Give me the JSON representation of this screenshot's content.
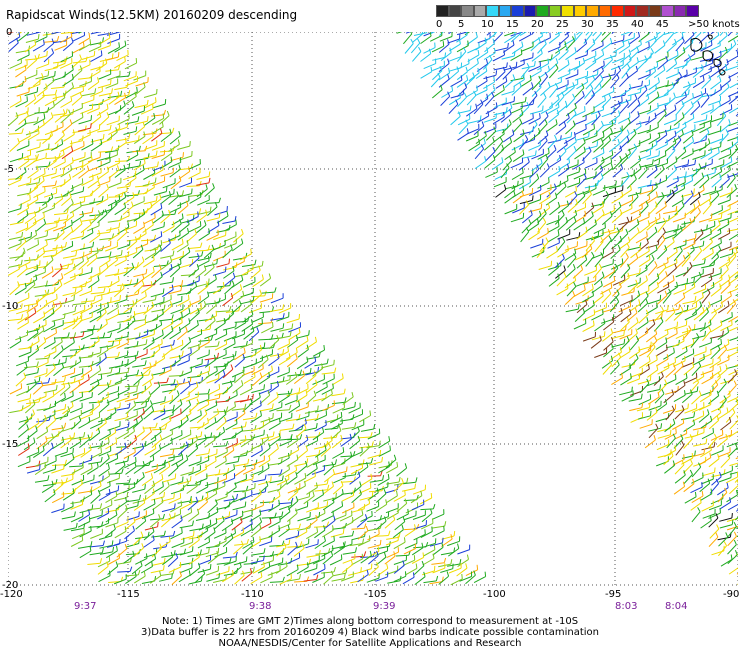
{
  "title": "Rapidscat Winds(12.5KM) 20160209 descending",
  "legend": {
    "labels": [
      "0",
      "5",
      "10",
      "15",
      "20",
      "25",
      "30",
      "35",
      "40",
      "45",
      ">50 knots"
    ],
    "colors": [
      "#333333",
      "#6a6a6a",
      "#36c8f0",
      "#1a3fd8",
      "#1faa1f",
      "#f0e000",
      "#ffaa00",
      "#ff3a00",
      "#d01818",
      "#7a3a18",
      "#8a2ab0",
      "#5a00a8"
    ]
  },
  "axes": {
    "lon_labels": [
      "-120",
      "-115",
      "-110",
      "-105",
      "-100",
      "-95",
      "-90"
    ],
    "lat_labels": [
      "0",
      "-5",
      "-10",
      "-15",
      "-20"
    ]
  },
  "times": [
    "9:37",
    "9:38",
    "9:39",
    "8:03",
    "8:04"
  ],
  "notes": [
    "Note: 1) Times are GMT 2)Times along bottom correspond to measurement at -10S",
    "3)Data buffer is 22 hrs from 20160209 4) Black wind barbs indicate possible contamination",
    "NOAA/NESDIS/Center for Satellite Applications and Research"
  ]
}
